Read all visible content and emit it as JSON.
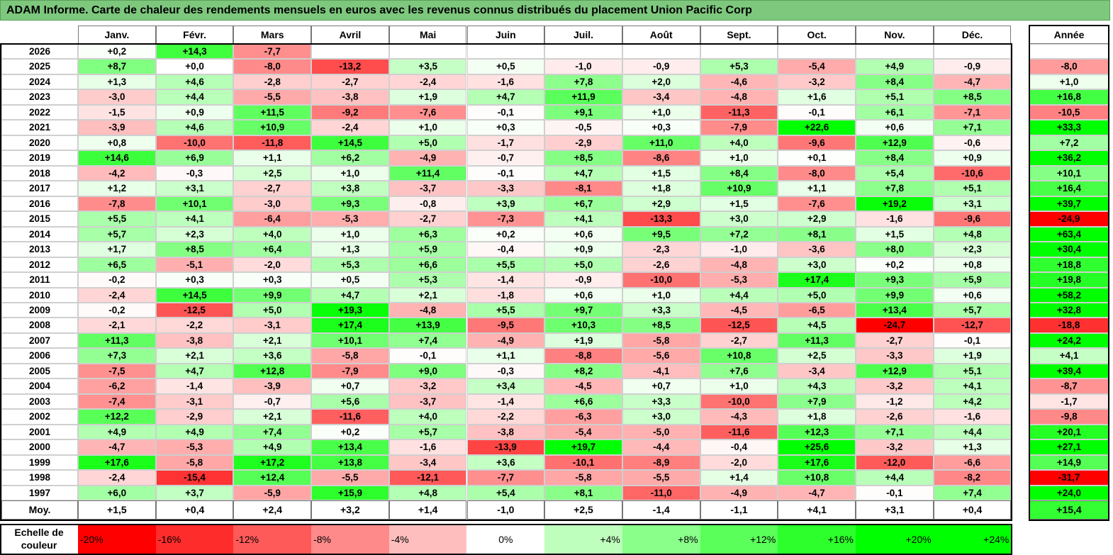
{
  "title": "ADAM Informe. Carte de chaleur des rendements mensuels en euros avec les revenus connus distribués du placement Union Pacific Corp",
  "chart_data": {
    "type": "heatmap",
    "title": "ADAM Informe. Carte de chaleur des rendements mensuels en euros avec les revenus connus distribués du placement Union Pacific Corp",
    "months": [
      "Janv.",
      "Févr.",
      "Mars",
      "Avril",
      "Mai",
      "Juin",
      "Juil.",
      "Août",
      "Sept.",
      "Oct.",
      "Nov.",
      "Déc."
    ],
    "year_header": "Année",
    "avg_label": "Moy.",
    "rows": [
      {
        "year": "2026",
        "values": [
          "+0,2",
          "+14,3",
          "-7,7",
          "",
          "",
          "",
          "",
          "",
          "",
          "",
          "",
          ""
        ],
        "annual": ""
      },
      {
        "year": "2025",
        "values": [
          "+8,7",
          "+0,0",
          "-8,0",
          "-13,2",
          "+3,5",
          "+0,5",
          "-1,0",
          "-0,9",
          "+5,3",
          "-5,4",
          "+4,9",
          "-0,9"
        ],
        "annual": "-8,0"
      },
      {
        "year": "2024",
        "values": [
          "+1,3",
          "+4,6",
          "-2,8",
          "-2,7",
          "-2,4",
          "-1,6",
          "+7,8",
          "+2,0",
          "-4,6",
          "-3,2",
          "+8,4",
          "-4,7"
        ],
        "annual": "+1,0"
      },
      {
        "year": "2023",
        "values": [
          "-3,0",
          "+4,4",
          "-5,5",
          "-3,8",
          "+1,9",
          "+4,7",
          "+11,9",
          "-3,4",
          "-4,8",
          "+1,6",
          "+5,1",
          "+8,5"
        ],
        "annual": "+16,8"
      },
      {
        "year": "2022",
        "values": [
          "-1,5",
          "+0,9",
          "+11,5",
          "-9,2",
          "-7,6",
          "-0,1",
          "+9,1",
          "+1,0",
          "-11,3",
          "-0,1",
          "+6,1",
          "-7,1"
        ],
        "annual": "-10,5"
      },
      {
        "year": "2021",
        "values": [
          "-3,9",
          "+4,6",
          "+10,9",
          "-2,4",
          "+1,0",
          "+0,3",
          "-0,5",
          "+0,3",
          "-7,9",
          "+22,6",
          "+0,6",
          "+7,1"
        ],
        "annual": "+33,3"
      },
      {
        "year": "2020",
        "values": [
          "+0,8",
          "-10,0",
          "-11,8",
          "+14,5",
          "+5,0",
          "-1,7",
          "-2,9",
          "+11,0",
          "+4,0",
          "-9,6",
          "+12,9",
          "-0,6"
        ],
        "annual": "+7,2"
      },
      {
        "year": "2019",
        "values": [
          "+14,6",
          "+6,9",
          "+1,1",
          "+6,2",
          "-4,9",
          "-0,7",
          "+8,5",
          "-8,6",
          "+1,0",
          "+0,1",
          "+8,4",
          "+0,9"
        ],
        "annual": "+36,2"
      },
      {
        "year": "2018",
        "values": [
          "-4,2",
          "-0,3",
          "+2,5",
          "+1,0",
          "+11,4",
          "-0,1",
          "+4,7",
          "+1,5",
          "+8,4",
          "-8,0",
          "+5,4",
          "-10,6"
        ],
        "annual": "+10,1"
      },
      {
        "year": "2017",
        "values": [
          "+1,2",
          "+3,1",
          "-2,7",
          "+3,8",
          "-3,7",
          "-3,3",
          "-8,1",
          "+1,8",
          "+10,9",
          "+1,1",
          "+7,8",
          "+5,1"
        ],
        "annual": "+16,4"
      },
      {
        "year": "2016",
        "values": [
          "-7,8",
          "+10,1",
          "-3,0",
          "+9,3",
          "-0,8",
          "+3,9",
          "+6,7",
          "+2,9",
          "+1,5",
          "-7,6",
          "+19,2",
          "+3,1"
        ],
        "annual": "+39,7"
      },
      {
        "year": "2015",
        "values": [
          "+5,5",
          "+4,1",
          "-6,4",
          "-5,3",
          "-2,7",
          "-7,3",
          "+4,1",
          "-13,3",
          "+3,0",
          "+2,9",
          "-1,6",
          "-9,6"
        ],
        "annual": "-24,9"
      },
      {
        "year": "2014",
        "values": [
          "+5,7",
          "+2,3",
          "+4,0",
          "+1,0",
          "+6,3",
          "+0,2",
          "+0,6",
          "+9,5",
          "+7,2",
          "+8,1",
          "+1,5",
          "+4,8"
        ],
        "annual": "+63,4"
      },
      {
        "year": "2013",
        "values": [
          "+1,7",
          "+8,5",
          "+6,4",
          "+1,3",
          "+5,9",
          "-0,4",
          "+0,9",
          "-2,3",
          "-1,0",
          "-3,6",
          "+8,0",
          "+2,3"
        ],
        "annual": "+30,4"
      },
      {
        "year": "2012",
        "values": [
          "+6,5",
          "-5,1",
          "-2,0",
          "+5,3",
          "+6,6",
          "+5,5",
          "+5,0",
          "-2,6",
          "-4,8",
          "+3,0",
          "+0,2",
          "+0,8"
        ],
        "annual": "+18,8"
      },
      {
        "year": "2011",
        "values": [
          "-0,2",
          "+0,3",
          "+0,3",
          "+0,5",
          "+5,3",
          "-1,4",
          "-0,9",
          "-10,0",
          "-5,3",
          "+17,4",
          "+9,3",
          "+5,9"
        ],
        "annual": "+19,8"
      },
      {
        "year": "2010",
        "values": [
          "-2,4",
          "+14,5",
          "+9,9",
          "+4,7",
          "+2,1",
          "-1,8",
          "+0,6",
          "+1,0",
          "+4,4",
          "+5,0",
          "+9,9",
          "+0,6"
        ],
        "annual": "+58,2"
      },
      {
        "year": "2009",
        "values": [
          "-0,2",
          "-12,5",
          "+5,0",
          "+19,3",
          "-4,8",
          "+5,5",
          "+9,7",
          "+3,3",
          "-4,5",
          "-6,5",
          "+13,4",
          "+5,7"
        ],
        "annual": "+32,8"
      },
      {
        "year": "2008",
        "values": [
          "-2,1",
          "-2,2",
          "-3,1",
          "+17,4",
          "+13,9",
          "-9,5",
          "+10,3",
          "+8,5",
          "-12,5",
          "+4,5",
          "-24,7",
          "-12,7"
        ],
        "annual": "-18,8"
      },
      {
        "year": "2007",
        "values": [
          "+11,3",
          "-3,8",
          "+2,1",
          "+10,1",
          "+7,4",
          "-4,9",
          "+1,9",
          "-5,8",
          "-2,7",
          "+11,3",
          "-2,7",
          "-0,1"
        ],
        "annual": "+24,2"
      },
      {
        "year": "2006",
        "values": [
          "+7,3",
          "+2,1",
          "+3,6",
          "-5,8",
          "-0,1",
          "+1,1",
          "-8,8",
          "-5,6",
          "+10,8",
          "+2,5",
          "-3,3",
          "+1,9"
        ],
        "annual": "+4,1"
      },
      {
        "year": "2005",
        "values": [
          "-7,5",
          "+4,7",
          "+12,8",
          "-7,9",
          "+9,0",
          "-0,3",
          "+8,2",
          "-4,1",
          "+7,6",
          "-3,4",
          "+12,9",
          "+5,1"
        ],
        "annual": "+39,4"
      },
      {
        "year": "2004",
        "values": [
          "-6,2",
          "-1,4",
          "-3,9",
          "+0,7",
          "-3,2",
          "+3,4",
          "-4,5",
          "+0,7",
          "+1,0",
          "+4,3",
          "-3,2",
          "+4,1"
        ],
        "annual": "-8,7"
      },
      {
        "year": "2003",
        "values": [
          "-7,4",
          "-3,1",
          "-0,7",
          "+5,6",
          "-3,7",
          "-1,4",
          "+6,6",
          "+3,3",
          "-10,0",
          "+7,9",
          "-1,2",
          "+4,2"
        ],
        "annual": "-1,7"
      },
      {
        "year": "2002",
        "values": [
          "+12,2",
          "-2,9",
          "+2,1",
          "-11,6",
          "+4,0",
          "-2,2",
          "-6,3",
          "+3,0",
          "-4,3",
          "+1,8",
          "-2,6",
          "-1,6"
        ],
        "annual": "-9,8"
      },
      {
        "year": "2001",
        "values": [
          "+4,9",
          "+4,9",
          "+7,4",
          "+0,2",
          "+5,7",
          "-3,8",
          "-5,4",
          "-5,0",
          "-11,6",
          "+12,3",
          "+7,1",
          "+4,4"
        ],
        "annual": "+20,1"
      },
      {
        "year": "2000",
        "values": [
          "-4,7",
          "-5,3",
          "+4,9",
          "+13,4",
          "-1,6",
          "-13,9",
          "+19,7",
          "-4,4",
          "-0,4",
          "+25,6",
          "-3,2",
          "+1,3"
        ],
        "annual": "+27,1"
      },
      {
        "year": "1999",
        "values": [
          "+17,6",
          "-5,8",
          "+17,2",
          "+13,8",
          "-3,4",
          "+3,6",
          "-10,1",
          "-8,9",
          "-2,0",
          "+17,6",
          "-12,0",
          "-6,6"
        ],
        "annual": "+14,9"
      },
      {
        "year": "1998",
        "values": [
          "-2,4",
          "-15,4",
          "+12,4",
          "-5,5",
          "-12,1",
          "-7,7",
          "-5,8",
          "-5,5",
          "+1,4",
          "+10,8",
          "+4,4",
          "-8,2"
        ],
        "annual": "-31,7"
      },
      {
        "year": "1997",
        "values": [
          "+6,0",
          "+3,7",
          "-5,9",
          "+15,9",
          "+4,8",
          "+5,4",
          "+8,1",
          "-11,0",
          "-4,9",
          "-4,7",
          "-0,1",
          "+7,4"
        ],
        "annual": "+24,0"
      }
    ],
    "averages": {
      "values": [
        "+1,5",
        "+0,4",
        "+2,4",
        "+3,2",
        "+1,4",
        "-1,0",
        "+2,5",
        "-1,4",
        "-1,1",
        "+4,1",
        "+3,1",
        "+0,4"
      ],
      "annual": "+15,4"
    },
    "color_scale": {
      "label": "Echelle de couleur",
      "steps": [
        "-20%",
        "-16%",
        "-12%",
        "-8%",
        "-4%",
        "0%",
        "+4%",
        "+8%",
        "+12%",
        "+16%",
        "+20%",
        "+24%"
      ],
      "negative_color": "#ff0000",
      "neutral_color": "#ffffff",
      "positive_color": "#00ff00"
    }
  }
}
